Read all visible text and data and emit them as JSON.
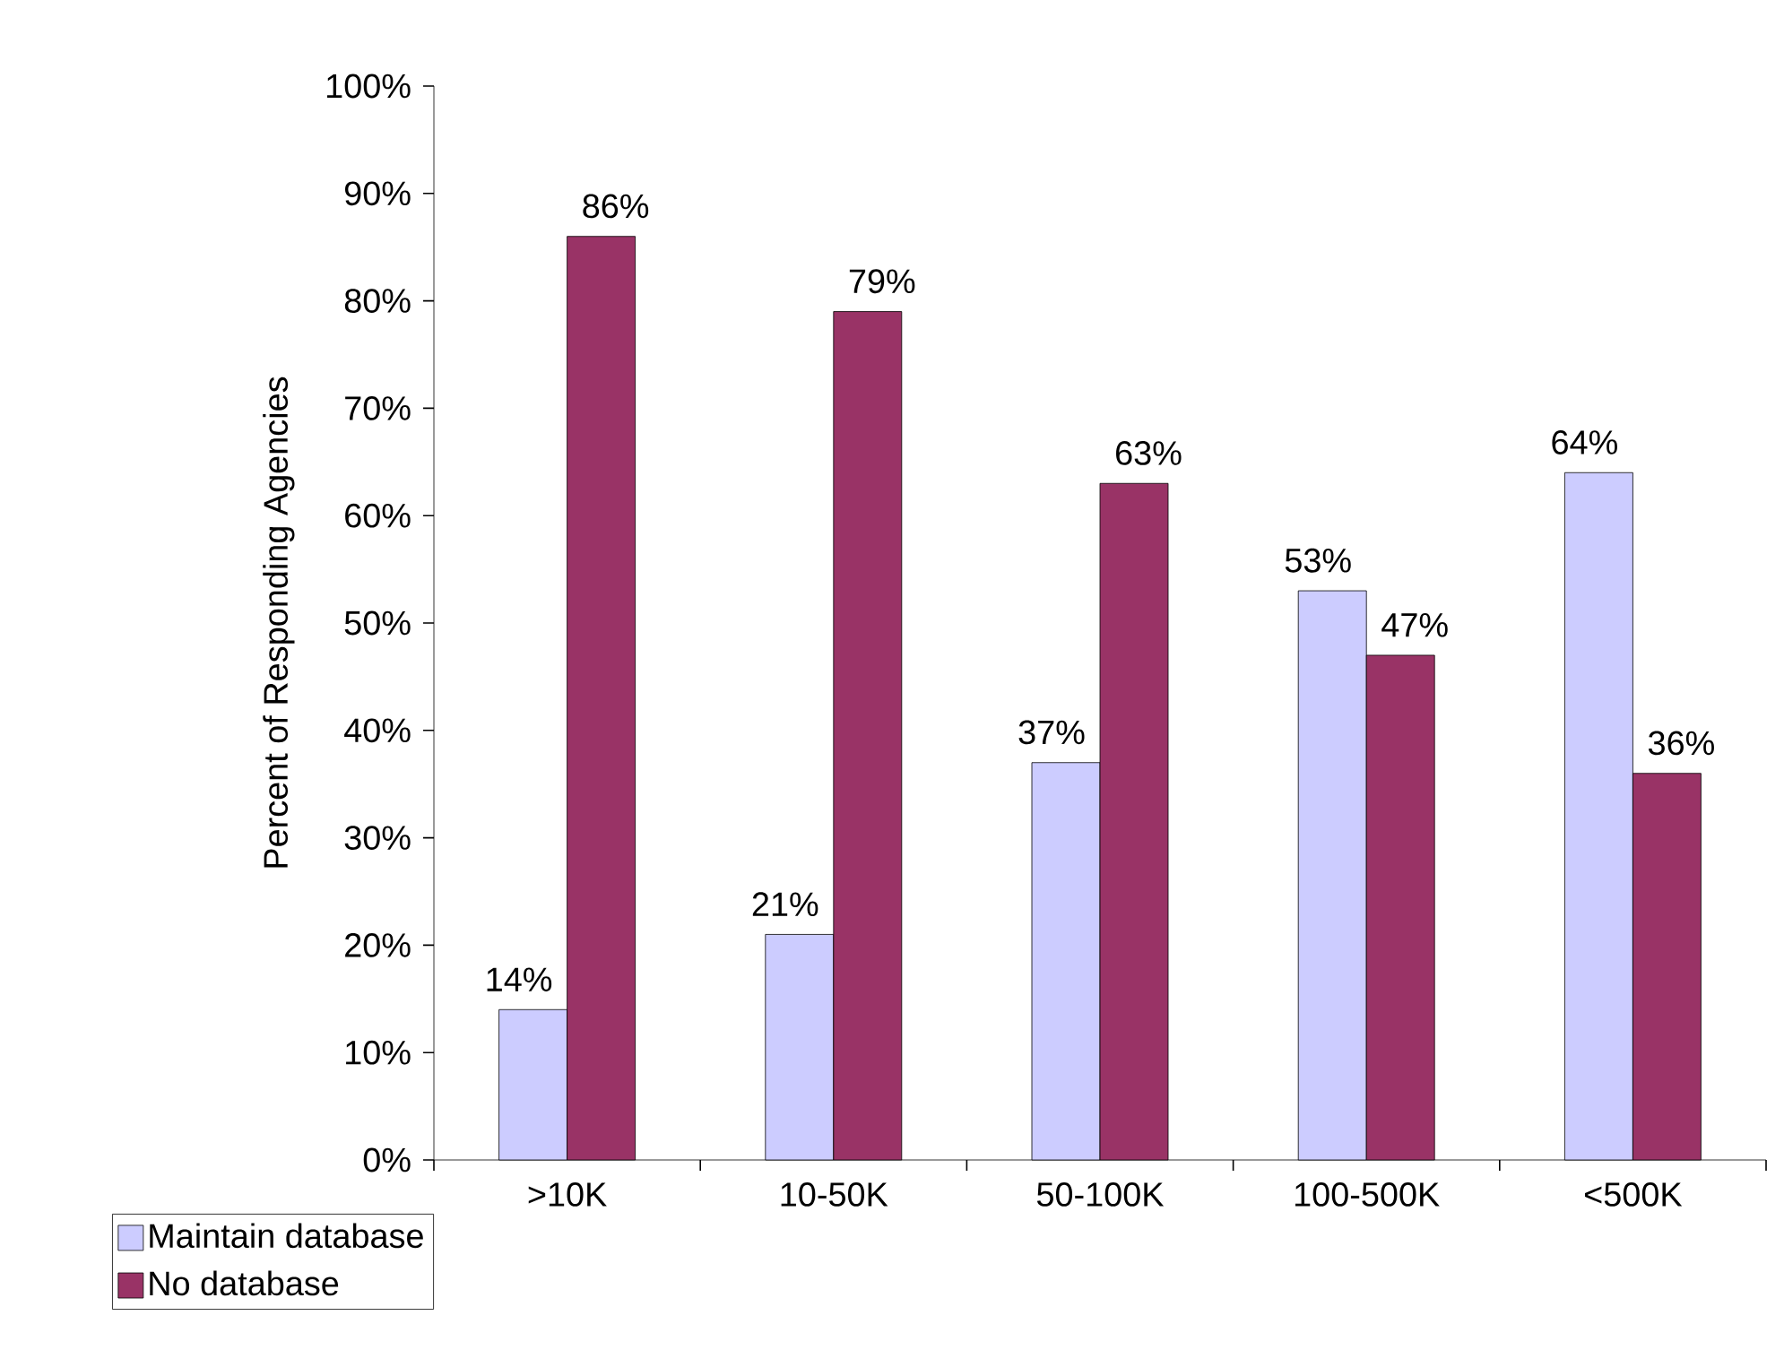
{
  "chart_data": {
    "type": "bar",
    "ylabel": "Percent of Responding Agencies",
    "categories": [
      ">10K",
      "10-50K",
      "50-100K",
      "100-500K",
      "<500K"
    ],
    "series": [
      {
        "name": "Maintain database",
        "color": "#ccccff",
        "values": [
          14,
          21,
          37,
          53,
          64
        ],
        "value_labels": [
          "14%",
          "21%",
          "37%",
          "53%",
          "64%"
        ]
      },
      {
        "name": "No database",
        "color": "#993366",
        "values": [
          86,
          79,
          63,
          47,
          36
        ],
        "value_labels": [
          "86%",
          "79%",
          "63%",
          "47%",
          "36%"
        ]
      }
    ],
    "ylim": [
      0,
      100
    ],
    "yticks": [
      {
        "value": 0,
        "label": "0%"
      },
      {
        "value": 10,
        "label": "10%"
      },
      {
        "value": 20,
        "label": "20%"
      },
      {
        "value": 30,
        "label": "30%"
      },
      {
        "value": 40,
        "label": "40%"
      },
      {
        "value": 50,
        "label": "50%"
      },
      {
        "value": 60,
        "label": "60%"
      },
      {
        "value": 70,
        "label": "70%"
      },
      {
        "value": 80,
        "label": "80%"
      },
      {
        "value": 90,
        "label": "90%"
      },
      {
        "value": 100,
        "label": "100%"
      }
    ],
    "grid": false,
    "legend": "bottom left"
  }
}
